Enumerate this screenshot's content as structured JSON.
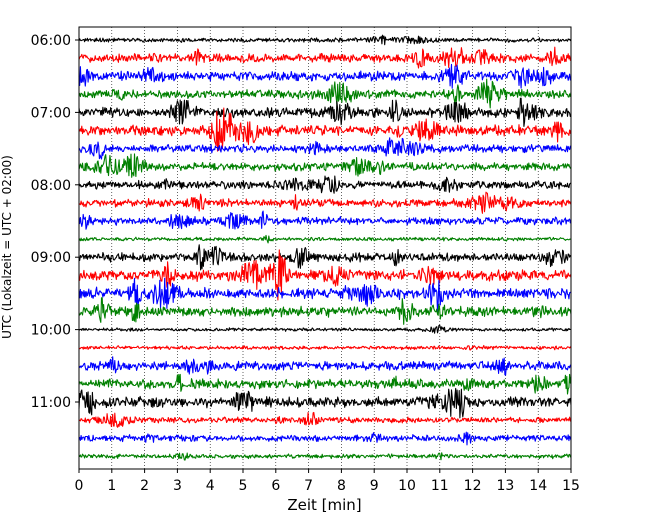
{
  "chart_data": {
    "type": "line",
    "chart_kind": "helicorder",
    "title": "",
    "xlabel": "Zeit  [min]",
    "ylabel": "UTC (Lokalzeit = UTC + 02:00)",
    "xlim": [
      0,
      15
    ],
    "x_ticks": [
      "0",
      "1",
      "2",
      "3",
      "4",
      "5",
      "6",
      "7",
      "8",
      "9",
      "10",
      "11",
      "12",
      "13",
      "14",
      "15"
    ],
    "y_ticks": [
      "06:00",
      "07:00",
      "08:00",
      "09:00",
      "10:00",
      "11:00"
    ],
    "grid": "vertical dotted",
    "line_colors": [
      "#000000",
      "#ff0000",
      "#0000ff",
      "#008000"
    ],
    "row_minutes": 15,
    "rows": [
      {
        "start": "06:00",
        "activity": 0.15
      },
      {
        "start": "06:15",
        "activity": 0.45
      },
      {
        "start": "06:30",
        "activity": 0.5
      },
      {
        "start": "06:45",
        "activity": 0.5
      },
      {
        "start": "07:00",
        "activity": 0.55
      },
      {
        "start": "07:15",
        "activity": 0.55
      },
      {
        "start": "07:30",
        "activity": 0.4
      },
      {
        "start": "07:45",
        "activity": 0.4
      },
      {
        "start": "08:00",
        "activity": 0.4
      },
      {
        "start": "08:15",
        "activity": 0.4
      },
      {
        "start": "08:30",
        "activity": 0.4
      },
      {
        "start": "08:45",
        "activity": 0.1
      },
      {
        "start": "09:00",
        "activity": 0.45
      },
      {
        "start": "09:15",
        "activity": 0.6
      },
      {
        "start": "09:30",
        "activity": 0.6
      },
      {
        "start": "09:45",
        "activity": 0.55
      },
      {
        "start": "10:00",
        "activity": 0.08
      },
      {
        "start": "10:15",
        "activity": 0.1
      },
      {
        "start": "10:30",
        "activity": 0.45
      },
      {
        "start": "10:45",
        "activity": 0.5
      },
      {
        "start": "11:00",
        "activity": 0.55
      },
      {
        "start": "11:15",
        "activity": 0.25
      },
      {
        "start": "11:30",
        "activity": 0.3
      },
      {
        "start": "11:45",
        "activity": 0.15
      }
    ]
  }
}
